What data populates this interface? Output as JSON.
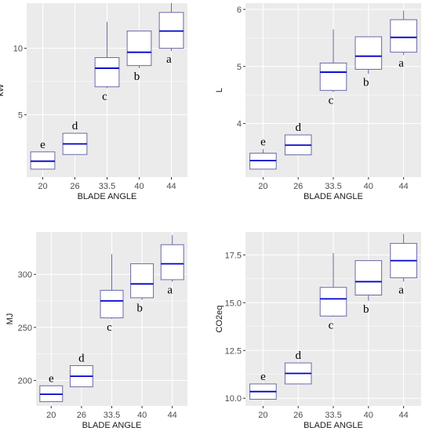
{
  "colors": {
    "panel_bg": "#EBEBEB",
    "grid": "#FFFFFF",
    "box_stroke": "#6A6AA8",
    "median": "#0000CD",
    "tick_text": "#4D4D4D",
    "title_text": "#1A1A1A"
  },
  "chart_data": [
    {
      "type": "box",
      "xlabel": "BLADE ANGLE",
      "ylabel": "kW",
      "categories": [
        "20",
        "26",
        "33.5",
        "40",
        "44"
      ],
      "yticks": [
        5,
        10
      ],
      "ylim": [
        0.3,
        13.4
      ],
      "grid": true,
      "boxes": [
        {
          "category": "20",
          "min": 0.9,
          "q1": 0.9,
          "median": 1.5,
          "q3": 2.2,
          "max": 2.2,
          "letter": "e"
        },
        {
          "category": "26",
          "min": 2.0,
          "q1": 2.0,
          "median": 2.8,
          "q3": 3.6,
          "max": 3.6,
          "letter": "d"
        },
        {
          "category": "33.5",
          "min": 7.0,
          "q1": 7.1,
          "median": 8.5,
          "q3": 9.3,
          "max": 12.0,
          "letter": "c"
        },
        {
          "category": "40",
          "min": 8.5,
          "q1": 8.7,
          "median": 9.7,
          "q3": 11.3,
          "max": 11.3,
          "letter": "b"
        },
        {
          "category": "44",
          "min": 9.8,
          "q1": 10.0,
          "median": 11.3,
          "q3": 12.7,
          "max": 13.4,
          "letter": "a"
        }
      ]
    },
    {
      "type": "box",
      "xlabel": "BLADE ANGLE",
      "ylabel": "L",
      "categories": [
        "20",
        "26",
        "33.5",
        "40",
        "44"
      ],
      "yticks": [
        4,
        5,
        6
      ],
      "ylim": [
        3.06,
        6.11
      ],
      "grid": true,
      "boxes": [
        {
          "category": "20",
          "min": 3.2,
          "q1": 3.2,
          "median": 3.35,
          "q3": 3.48,
          "max": 3.55,
          "letter": "e"
        },
        {
          "category": "26",
          "min": 3.45,
          "q1": 3.45,
          "median": 3.62,
          "q3": 3.8,
          "max": 3.8,
          "letter": "d"
        },
        {
          "category": "33.5",
          "min": 4.55,
          "q1": 4.58,
          "median": 4.9,
          "q3": 5.06,
          "max": 5.65,
          "letter": "c"
        },
        {
          "category": "40",
          "min": 4.87,
          "q1": 4.95,
          "median": 5.18,
          "q3": 5.52,
          "max": 5.52,
          "letter": "b"
        },
        {
          "category": "44",
          "min": 5.2,
          "q1": 5.25,
          "median": 5.51,
          "q3": 5.82,
          "max": 5.98,
          "letter": "a"
        }
      ]
    },
    {
      "type": "box",
      "xlabel": "BLADE ANGLE",
      "ylabel": "MJ",
      "categories": [
        "20",
        "26",
        "33.5",
        "40",
        "44"
      ],
      "yticks": [
        200,
        250,
        300
      ],
      "ylim": [
        176,
        340
      ],
      "grid": true,
      "boxes": [
        {
          "category": "20",
          "min": 180,
          "q1": 180,
          "median": 187,
          "q3": 195,
          "max": 195,
          "letter": "e"
        },
        {
          "category": "26",
          "min": 194,
          "q1": 194,
          "median": 204,
          "q3": 214,
          "max": 214,
          "letter": "d"
        },
        {
          "category": "33.5",
          "min": 258,
          "q1": 259,
          "median": 275,
          "q3": 285,
          "max": 319,
          "letter": "c"
        },
        {
          "category": "40",
          "min": 276,
          "q1": 278,
          "median": 291,
          "q3": 310,
          "max": 310,
          "letter": "b"
        },
        {
          "category": "44",
          "min": 293,
          "q1": 295,
          "median": 310,
          "q3": 328,
          "max": 337,
          "letter": "a"
        }
      ]
    },
    {
      "type": "box",
      "xlabel": "BLADE ANGLE",
      "ylabel": "CO2eq",
      "categories": [
        "20",
        "26",
        "33.5",
        "40",
        "44"
      ],
      "yticks": [
        10.0,
        12.5,
        15.0,
        17.5
      ],
      "ylabels": [
        "10.0",
        "12.5",
        "15.0",
        "17.5"
      ],
      "ylim": [
        9.6,
        18.7
      ],
      "grid": true,
      "boxes": [
        {
          "category": "20",
          "min": 9.95,
          "q1": 9.95,
          "median": 10.35,
          "q3": 10.75,
          "max": 10.75,
          "letter": "e"
        },
        {
          "category": "26",
          "min": 10.75,
          "q1": 10.75,
          "median": 11.3,
          "q3": 11.85,
          "max": 11.85,
          "letter": "d"
        },
        {
          "category": "33.5",
          "min": 14.25,
          "q1": 14.3,
          "median": 15.2,
          "q3": 15.8,
          "max": 17.6,
          "letter": "c"
        },
        {
          "category": "40",
          "min": 15.1,
          "q1": 15.4,
          "median": 16.1,
          "q3": 17.2,
          "max": 17.2,
          "letter": "b"
        },
        {
          "category": "44",
          "min": 16.1,
          "q1": 16.3,
          "median": 17.2,
          "q3": 18.1,
          "max": 18.6,
          "letter": "a"
        }
      ]
    }
  ]
}
